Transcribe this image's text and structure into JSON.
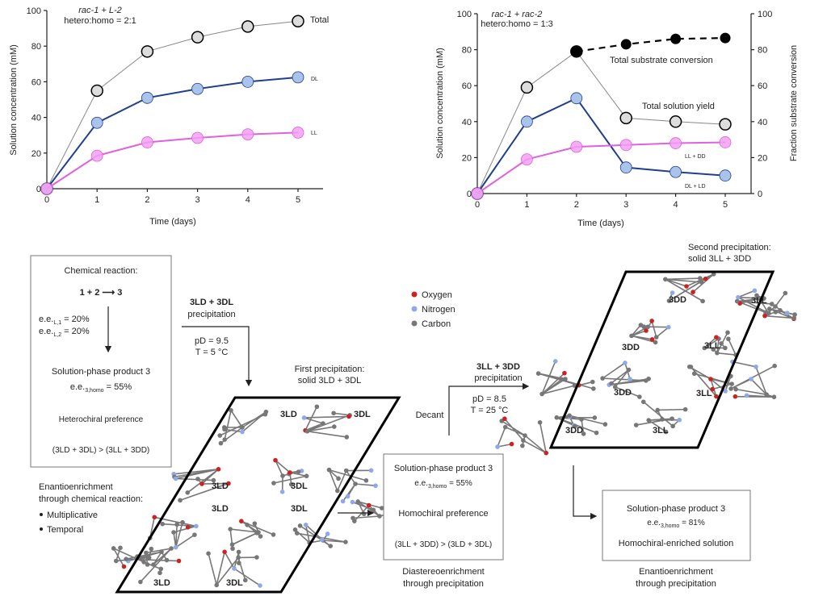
{
  "chart_data": [
    {
      "type": "line",
      "title_line1": "rac-1 + L-2",
      "title_line2": "hetero:homo = 2:1",
      "xlabel": "Time (days)",
      "ylabel": "Solution concentration (mM)",
      "xlim": [
        0,
        5
      ],
      "ylim": [
        0,
        100
      ],
      "xticks": [
        "0",
        "1",
        "2",
        "3",
        "4",
        "5"
      ],
      "yticks": [
        "0",
        "20",
        "40",
        "60",
        "80",
        "100"
      ],
      "x": [
        0,
        1,
        2,
        3,
        4,
        5
      ],
      "series": [
        {
          "name": "Total",
          "values": [
            0,
            55,
            77,
            85,
            91,
            94
          ],
          "color": "#888888",
          "marker_fill": "#dddddd"
        },
        {
          "name": "DL",
          "values": [
            0,
            37,
            51,
            56,
            60,
            62.5
          ],
          "color": "#1f3f8f",
          "marker_fill": "#a9c3ea"
        },
        {
          "name": "LL",
          "values": [
            0,
            18.5,
            26,
            28.5,
            30.5,
            31.5
          ],
          "color": "#e060e0",
          "marker_fill": "#f2a0f2"
        }
      ]
    },
    {
      "type": "line",
      "title_line1": "rac-1 + rac-2",
      "title_line2": "hetero:homo = 1:3",
      "xlabel": "Time (days)",
      "ylabel": "Solution concentration (mM)",
      "y2label": "Fraction substrate conversion",
      "xlim": [
        0,
        5
      ],
      "ylim": [
        0,
        100
      ],
      "y2lim": [
        0,
        100
      ],
      "xticks": [
        "0",
        "1",
        "2",
        "3",
        "4",
        "5"
      ],
      "yticks": [
        "0",
        "20",
        "40",
        "60",
        "80",
        "100"
      ],
      "y2ticks": [
        "0",
        "20",
        "40",
        "60",
        "80",
        "100"
      ],
      "x": [
        0,
        1,
        2,
        3,
        4,
        5
      ],
      "series": [
        {
          "name": "Total solution yield",
          "values": [
            0,
            59,
            79,
            42,
            40,
            38.5
          ],
          "color": "#888888",
          "marker_fill": "#dddddd"
        },
        {
          "name": "DL + LD",
          "values": [
            0,
            40,
            53,
            14.5,
            12,
            10
          ],
          "color": "#1f3f8f",
          "marker_fill": "#a9c3ea"
        },
        {
          "name": "LL + DD",
          "values": [
            0,
            19,
            26,
            27,
            28,
            28.5
          ],
          "color": "#e060e0",
          "marker_fill": "#f2a0f2"
        },
        {
          "name": "Total substrate conversion",
          "x": [
            2,
            3,
            4,
            5
          ],
          "values": [
            79,
            83,
            86,
            86.5
          ],
          "color": "#000000",
          "marker_fill": "#000000",
          "dashed": true,
          "axis": "right"
        }
      ]
    }
  ],
  "diagram": {
    "box1": {
      "heading": "Chemical reaction:",
      "reaction": "1 + 2 ⟶ 3",
      "ee1": "e.e.",
      "ee1_sub": "L,1",
      "ee1_val": " = 20%",
      "ee2": "e.e.",
      "ee2_sub": "L,2",
      "ee2_val": " = 20%",
      "product": "Solution-phase product 3",
      "ee3": "e.e.",
      "ee3_sub": "3,homo",
      "ee3_val": " = 55%",
      "preference": "Heterochiral preference",
      "inequality": "(3LD + 3DL) > (3LL + 3DD)"
    },
    "enrich_chem": {
      "line1": "Enantioenrichment",
      "line2": "through chemical reaction:",
      "bullets": [
        "Multiplicative",
        "Temporal"
      ]
    },
    "step1": {
      "species": "3LD + 3DL",
      "action": "precipitation",
      "pD": "pD = 9.5",
      "T": "T = 5 °C"
    },
    "first_precip": {
      "line1": "First precipitation:",
      "line2": "solid 3LD + 3DL"
    },
    "crystal1_labels": [
      "3LD",
      "3DL",
      "3LD",
      "3DL",
      "3LD",
      "3DL",
      "3LD",
      "3DL"
    ],
    "legend": [
      {
        "label": "Oxygen",
        "color": "#cc2222"
      },
      {
        "label": "Nitrogen",
        "color": "#8fa8e8"
      },
      {
        "label": "Carbon",
        "color": "#777777"
      }
    ],
    "step2": {
      "decant": "Decant",
      "species": "3LL + 3DD",
      "action": "precipitation",
      "pD": "pD = 8.5",
      "T": "T = 25 °C"
    },
    "second_precip": {
      "line1": "Second precipitation:",
      "line2": "solid 3LL + 3DD"
    },
    "crystal2_labels": [
      "3DD",
      "3LL",
      "3DD",
      "3LL",
      "3DD",
      "3LL",
      "3DD",
      "3LL"
    ],
    "box2": {
      "product": "Solution-phase product 3",
      "ee": "e.e.",
      "ee_sub": "3,homo",
      "ee_val": " = 55%",
      "preference": "Homochiral preference",
      "inequality": "(3LL + 3DD) > (3LD + 3DL)",
      "caption1": "Diastereoenrichment",
      "caption2": "through precipitation"
    },
    "box3": {
      "product": "Solution-phase product 3",
      "ee": "e.e.",
      "ee_sub": "3,homo",
      "ee_val": " = 81%",
      "note": "Homochiral-enriched solution",
      "caption1": "Enantioenrichment",
      "caption2": "through precipitation"
    }
  }
}
